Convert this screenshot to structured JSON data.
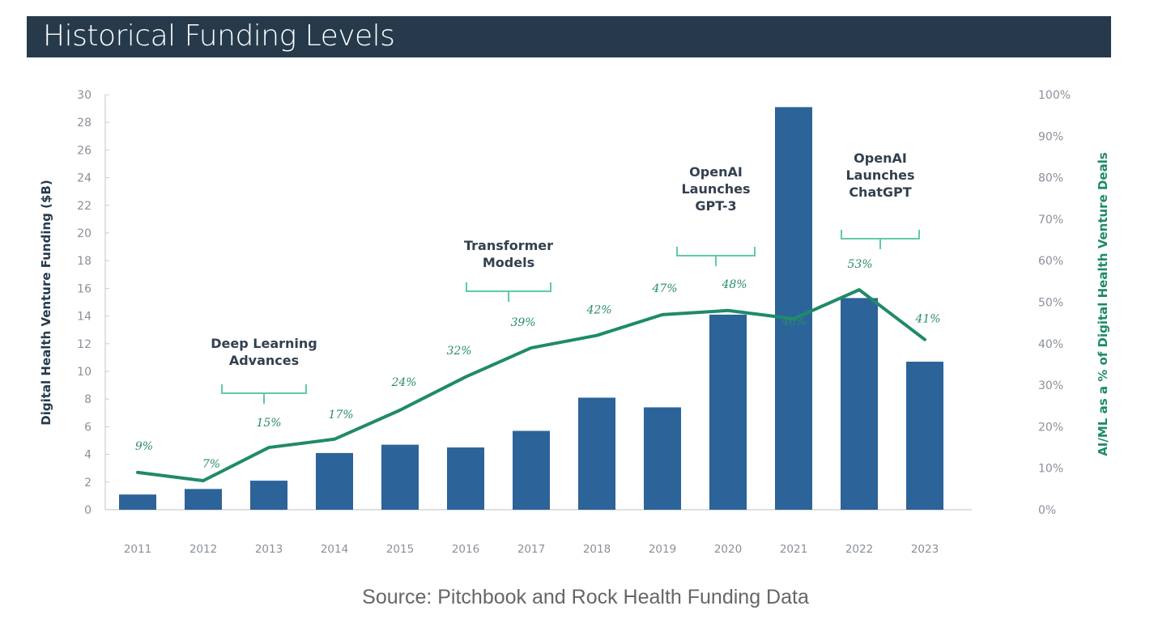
{
  "header": {
    "title": "Historical Funding Levels"
  },
  "source": "Source: Pitchbook and Rock Health Funding Data",
  "colors": {
    "title_bar": "#263a4c",
    "bar": "#2c6399",
    "line": "#1f8a6a",
    "bracket": "#5fc9ac",
    "axis_text": "#8a9099"
  },
  "chart_data": {
    "type": "bar",
    "title": "Historical Funding Levels",
    "categories": [
      "2011",
      "2012",
      "2013",
      "2014",
      "2015",
      "2016",
      "2017",
      "2018",
      "2019",
      "2020",
      "2021",
      "2022",
      "2023"
    ],
    "series": [
      {
        "name": "Digital Health Venture Funding ($B)",
        "type": "bar",
        "axis": "left",
        "values": [
          1.1,
          1.5,
          2.1,
          4.1,
          4.7,
          4.5,
          5.7,
          8.1,
          7.4,
          14.1,
          29.1,
          15.3,
          10.7
        ]
      },
      {
        "name": "AI/ML as a % of Digital Health Venture Deals",
        "type": "line",
        "axis": "right",
        "values": [
          9,
          7,
          15,
          17,
          24,
          32,
          39,
          42,
          47,
          48,
          46,
          53,
          41
        ],
        "labels": [
          "9%",
          "7%",
          "15%",
          "17%",
          "24%",
          "32%",
          "39%",
          "42%",
          "47%",
          "48%",
          "46%",
          "53%",
          "41%"
        ]
      }
    ],
    "ylabel": "Digital Health Venture Funding ($B)",
    "ylabel_right": "AI/ML as a % of Digital Health Venture Deals",
    "ylim": [
      0,
      30
    ],
    "ylim_right": [
      0,
      100
    ],
    "yticks": [
      "0",
      "2",
      "4",
      "6",
      "8",
      "10",
      "12",
      "14",
      "16",
      "18",
      "20",
      "22",
      "24",
      "26",
      "28",
      "30"
    ],
    "yticks_right": [
      "0%",
      "10%",
      "20%",
      "30%",
      "40%",
      "50%",
      "60%",
      "70%",
      "80%",
      "90%",
      "100%"
    ],
    "grid": false,
    "annotations": [
      {
        "lines": [
          "Deep Learning",
          "Advances"
        ],
        "span": [
          "2012",
          "2014"
        ]
      },
      {
        "lines": [
          "Transformer",
          "Models"
        ],
        "span": [
          "2016",
          "2018"
        ]
      },
      {
        "lines": [
          "OpenAI",
          "Launches",
          "GPT-3"
        ],
        "span": [
          "2019.8",
          "2020.4"
        ]
      },
      {
        "lines": [
          "OpenAI",
          "Launches",
          "ChatGPT"
        ],
        "span": [
          "2021.8",
          "2022.5"
        ]
      }
    ]
  }
}
